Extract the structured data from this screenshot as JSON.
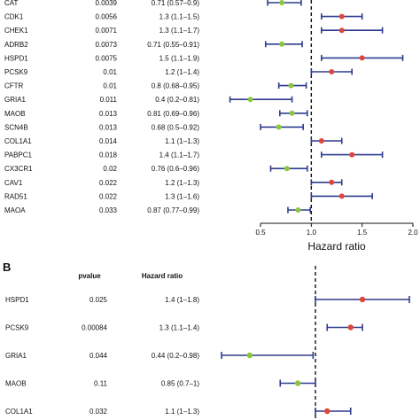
{
  "colors": {
    "ci_line": "#2e3b8f",
    "point_hr_gt1": "#e0453a",
    "point_hr_lt1": "#8cc63f",
    "reference_line": "#111111"
  },
  "chart_data": [
    {
      "type": "forest",
      "panel_label": "",
      "columns": {
        "pvalue": "",
        "hazard_ratio": ""
      },
      "xlabel": "Hazard ratio",
      "xlim": [
        0.5,
        2.0
      ],
      "xticks": [
        "0.5",
        "1.0",
        "1.5",
        "2.0"
      ],
      "reference_x": 1.0,
      "rows": [
        {
          "gene": "CAT",
          "pvalue": "0.0039",
          "hr_text": "0.71 (0.57–0.9)",
          "hr": 0.71,
          "lo": 0.57,
          "hi": 0.9
        },
        {
          "gene": "CDK1",
          "pvalue": "0.0056",
          "hr_text": "1.3 (1.1–1.5)",
          "hr": 1.3,
          "lo": 1.1,
          "hi": 1.5
        },
        {
          "gene": "CHEK1",
          "pvalue": "0.0071",
          "hr_text": "1.3 (1.1–1.7)",
          "hr": 1.3,
          "lo": 1.1,
          "hi": 1.7
        },
        {
          "gene": "ADRB2",
          "pvalue": "0.0073",
          "hr_text": "0.71 (0.55–0.91)",
          "hr": 0.71,
          "lo": 0.55,
          "hi": 0.91
        },
        {
          "gene": "HSPD1",
          "pvalue": "0.0075",
          "hr_text": "1.5 (1.1–1.9)",
          "hr": 1.5,
          "lo": 1.1,
          "hi": 1.9
        },
        {
          "gene": "PCSK9",
          "pvalue": "0.01",
          "hr_text": "1.2 (1–1.4)",
          "hr": 1.2,
          "lo": 1.0,
          "hi": 1.4
        },
        {
          "gene": "CFTR",
          "pvalue": "0.01",
          "hr_text": "0.8 (0.68–0.95)",
          "hr": 0.8,
          "lo": 0.68,
          "hi": 0.95
        },
        {
          "gene": "GRIA1",
          "pvalue": "0.011",
          "hr_text": "0.4 (0.2–0.81)",
          "hr": 0.4,
          "lo": 0.2,
          "hi": 0.81
        },
        {
          "gene": "MAOB",
          "pvalue": "0.013",
          "hr_text": "0.81 (0.69–0.96)",
          "hr": 0.81,
          "lo": 0.69,
          "hi": 0.96
        },
        {
          "gene": "SCN4B",
          "pvalue": "0.013",
          "hr_text": "0.68 (0.5–0.92)",
          "hr": 0.68,
          "lo": 0.5,
          "hi": 0.92
        },
        {
          "gene": "COL1A1",
          "pvalue": "0.014",
          "hr_text": "1.1 (1–1.3)",
          "hr": 1.1,
          "lo": 1.0,
          "hi": 1.3
        },
        {
          "gene": "PABPC1",
          "pvalue": "0.018",
          "hr_text": "1.4 (1.1–1.7)",
          "hr": 1.4,
          "lo": 1.1,
          "hi": 1.7
        },
        {
          "gene": "CX3CR1",
          "pvalue": "0.02",
          "hr_text": "0.76 (0.6–0.96)",
          "hr": 0.76,
          "lo": 0.6,
          "hi": 0.96
        },
        {
          "gene": "CAV1",
          "pvalue": "0.022",
          "hr_text": "1.2 (1–1.3)",
          "hr": 1.2,
          "lo": 1.0,
          "hi": 1.3
        },
        {
          "gene": "RAD51",
          "pvalue": "0.022",
          "hr_text": "1.3 (1–1.6)",
          "hr": 1.3,
          "lo": 1.0,
          "hi": 1.6
        },
        {
          "gene": "MAOA",
          "pvalue": "0.033",
          "hr_text": "0.87 (0.77–0.99)",
          "hr": 0.87,
          "lo": 0.77,
          "hi": 0.99
        }
      ]
    },
    {
      "type": "forest",
      "panel_label": "B",
      "columns": {
        "pvalue": "pvalue",
        "hazard_ratio": "Hazard ratio"
      },
      "xlabel": "",
      "xlim": [
        0.2,
        1.8
      ],
      "xticks": [],
      "reference_x": 1.0,
      "rows": [
        {
          "gene": "HSPD1",
          "pvalue": "0.025",
          "hr_text": "1.4 (1–1.8)",
          "hr": 1.4,
          "lo": 1.0,
          "hi": 1.8
        },
        {
          "gene": "PCSK9",
          "pvalue": "0.00084",
          "hr_text": "1.3 (1.1–1.4)",
          "hr": 1.3,
          "lo": 1.1,
          "hi": 1.4
        },
        {
          "gene": "GRIA1",
          "pvalue": "0.044",
          "hr_text": "0.44 (0.2–0.98)",
          "hr": 0.44,
          "lo": 0.2,
          "hi": 0.98
        },
        {
          "gene": "MAOB",
          "pvalue": "0.11",
          "hr_text": "0.85 (0.7–1)",
          "hr": 0.85,
          "lo": 0.7,
          "hi": 1.0
        },
        {
          "gene": "COL1A1",
          "pvalue": "0.032",
          "hr_text": "1.1 (1–1.3)",
          "hr": 1.1,
          "lo": 1.0,
          "hi": 1.3
        }
      ]
    }
  ]
}
